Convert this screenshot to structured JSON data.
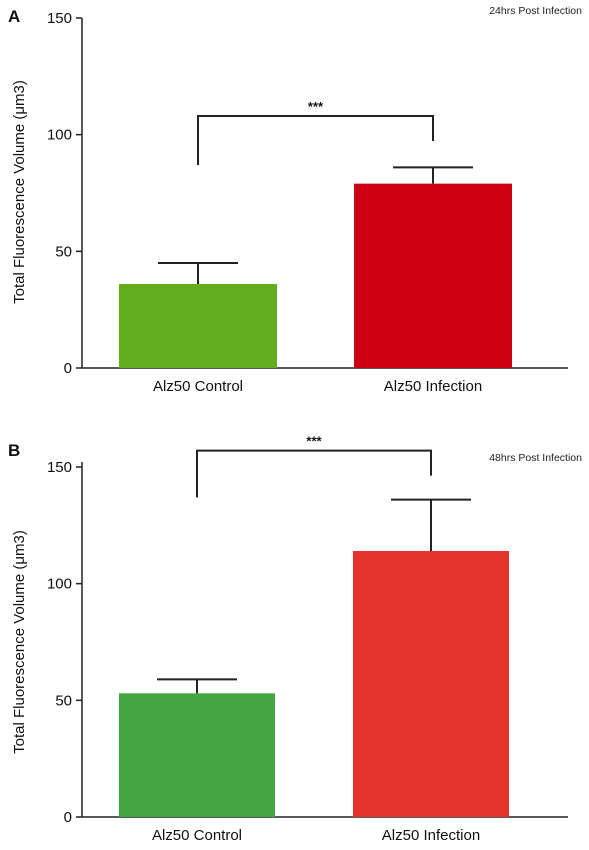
{
  "chart_data": [
    {
      "panel_letter": "A",
      "type": "bar",
      "annotation": "24hrs Post Infection",
      "ylabel": "Total Fluorescence Volume (μm3)",
      "ylim": [
        0,
        150
      ],
      "yticks": [
        0,
        50,
        100,
        150
      ],
      "categories": [
        "Alz50 Control",
        "Alz50 Infection"
      ],
      "values": [
        36,
        79
      ],
      "error": [
        9,
        7
      ],
      "colors": [
        "#63ae1f",
        "#cc0010"
      ],
      "significance": {
        "label": "***",
        "y_value": 108,
        "drop_value": 87
      }
    },
    {
      "panel_letter": "B",
      "type": "bar",
      "annotation": "48hrs Post Infection",
      "ylabel": "Total Fluorescence Volume (μm3)",
      "ylim": [
        0,
        150
      ],
      "yticks": [
        0,
        50,
        100,
        150
      ],
      "categories": [
        "Alz50 Control",
        "Alz50 Infection"
      ],
      "values": [
        53,
        114
      ],
      "error": [
        6,
        22
      ],
      "colors": [
        "#43a641",
        "#e3332b"
      ],
      "significance": {
        "label": "***",
        "y_value": 157,
        "drop_value": 137
      }
    }
  ]
}
